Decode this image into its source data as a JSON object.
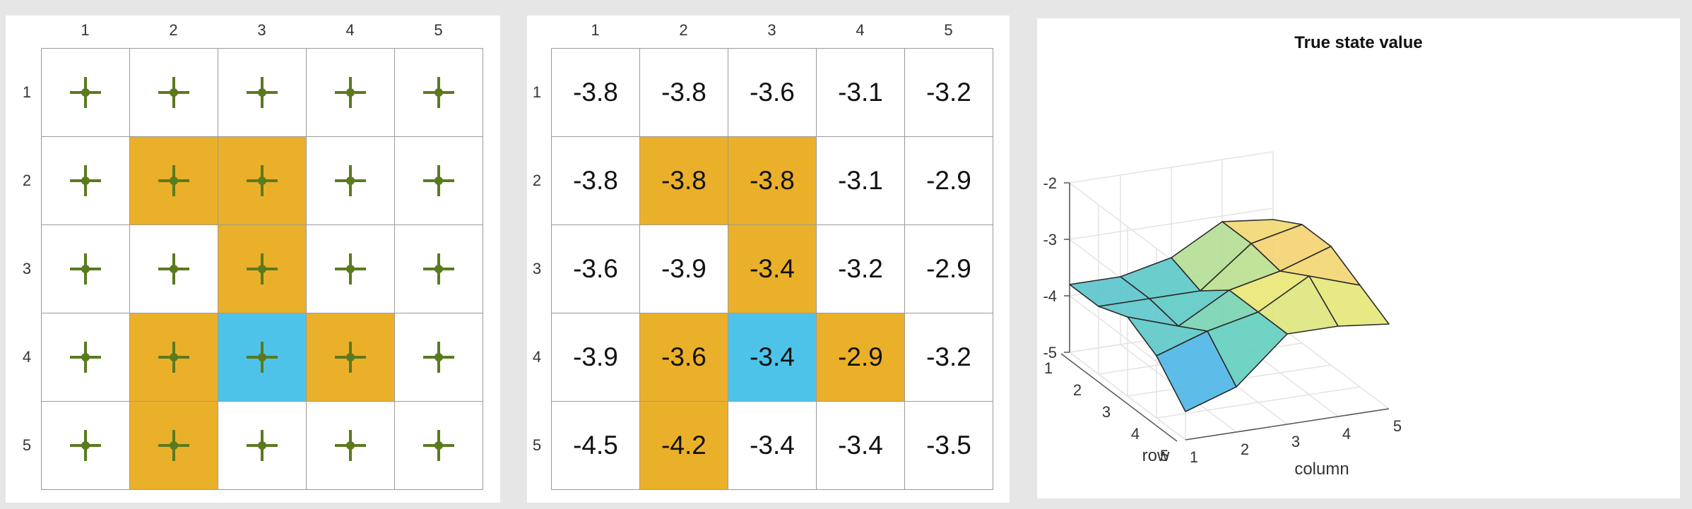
{
  "grid": {
    "col_labels": [
      "1",
      "2",
      "3",
      "4",
      "5"
    ],
    "row_labels": [
      "1",
      "2",
      "3",
      "4",
      "5"
    ],
    "cell_types": [
      [
        "white",
        "white",
        "white",
        "white",
        "white"
      ],
      [
        "white",
        "orange",
        "orange",
        "white",
        "white"
      ],
      [
        "white",
        "white",
        "orange",
        "white",
        "white"
      ],
      [
        "white",
        "orange",
        "blue",
        "orange",
        "white"
      ],
      [
        "white",
        "orange",
        "white",
        "white",
        "white"
      ]
    ],
    "colors": {
      "forbidden": "#ebb02a",
      "target": "#4ec3ea",
      "normal": "#ffffff",
      "policy_icon": "#5b7a1e"
    },
    "policy_icon": "stay-cross-icon"
  },
  "values_table": [
    [
      "-3.8",
      "-3.8",
      "-3.6",
      "-3.1",
      "-3.2"
    ],
    [
      "-3.8",
      "-3.8",
      "-3.8",
      "-3.1",
      "-2.9"
    ],
    [
      "-3.6",
      "-3.9",
      "-3.4",
      "-3.2",
      "-2.9"
    ],
    [
      "-3.9",
      "-3.6",
      "-3.4",
      "-2.9",
      "-3.2"
    ],
    [
      "-4.5",
      "-4.2",
      "-3.4",
      "-3.4",
      "-3.5"
    ]
  ],
  "chart_data": {
    "type": "surface",
    "title": "True state value",
    "xlabel": "column",
    "ylabel": "row",
    "zlim": [
      -5,
      -2
    ],
    "z_ticks": [
      "-2",
      "-3",
      "-4",
      "-5"
    ],
    "x_ticks": [
      "1",
      "2",
      "3",
      "4",
      "5"
    ],
    "y_ticks": [
      "1",
      "2",
      "3",
      "4",
      "5"
    ],
    "grid": true,
    "z": [
      [
        -3.8,
        -3.8,
        -3.6,
        -3.1,
        -3.2
      ],
      [
        -3.8,
        -3.8,
        -3.8,
        -3.1,
        -2.9
      ],
      [
        -3.6,
        -3.9,
        -3.4,
        -3.2,
        -2.9
      ],
      [
        -3.9,
        -3.6,
        -3.4,
        -2.9,
        -3.2
      ],
      [
        -4.5,
        -4.2,
        -3.4,
        -3.4,
        -3.5
      ]
    ]
  }
}
